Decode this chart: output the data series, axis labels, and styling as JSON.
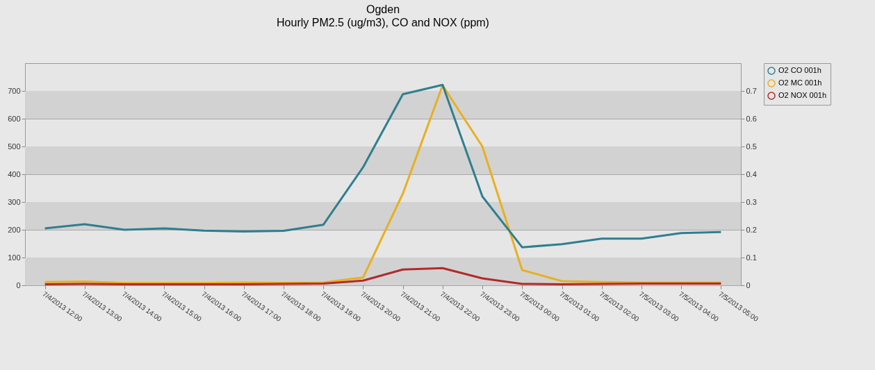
{
  "chart_data": {
    "type": "line",
    "title": "Ogden",
    "subtitle": "Hourly PM2.5 (ug/m3), CO and NOX (ppm)",
    "categories": [
      "7/4/2013 12:00",
      "7/4/2013 13:00",
      "7/4/2013 14:00",
      "7/4/2013 15:00",
      "7/4/2013 16:00",
      "7/4/2013 17:00",
      "7/4/2013 18:00",
      "7/4/2013 19:00",
      "7/4/2013 20:00",
      "7/4/2013 21:00",
      "7/4/2013 22:00",
      "7/4/2013 23:00",
      "7/5/2013 00:00",
      "7/5/2013 01:00",
      "7/5/2013 02:00",
      "7/5/2013 03:00",
      "7/5/2013 04:00",
      "7/5/2013 05:00"
    ],
    "series": [
      {
        "name": "O2 CO 001h",
        "color": "#2e7f8f",
        "axis": "y2",
        "values": [
          0.205,
          0.22,
          0.2,
          0.205,
          0.197,
          0.194,
          0.196,
          0.218,
          0.425,
          0.688,
          0.722,
          0.32,
          0.137,
          0.148,
          0.168,
          0.168,
          0.188,
          0.192
        ]
      },
      {
        "name": "O2 MC 001h",
        "color": "#e8b020",
        "values": [
          12,
          14,
          8,
          8,
          8,
          10,
          9,
          10,
          28,
          330,
          720,
          500,
          55,
          15,
          12,
          10,
          10,
          10
        ]
      },
      {
        "name": "O2 NOX 001h",
        "color": "#b22a2a",
        "axis": "y2",
        "values": [
          0.004,
          0.005,
          0.004,
          0.004,
          0.004,
          0.004,
          0.005,
          0.006,
          0.017,
          0.057,
          0.062,
          0.025,
          0.005,
          0.004,
          0.005,
          0.006,
          0.006,
          0.006
        ]
      }
    ],
    "ylim": [
      0,
      800
    ],
    "yticks": [
      0,
      100,
      200,
      300,
      400,
      500,
      600,
      700
    ],
    "y2lim": [
      0,
      0.8
    ],
    "y2ticks": [
      0,
      0.1,
      0.2,
      0.3,
      0.4,
      0.5,
      0.6,
      0.7
    ],
    "bands": [
      {
        "axis": "y",
        "from": 0,
        "to": 100,
        "color": "#d2d2d2"
      },
      {
        "axis": "y",
        "from": 200,
        "to": 300,
        "color": "#d2d2d2"
      },
      {
        "axis": "y",
        "from": 400,
        "to": 500,
        "color": "#d2d2d2"
      },
      {
        "axis": "y",
        "from": 600,
        "to": 700,
        "color": "#d2d2d2"
      }
    ],
    "grid": "y",
    "legend": "top right"
  }
}
